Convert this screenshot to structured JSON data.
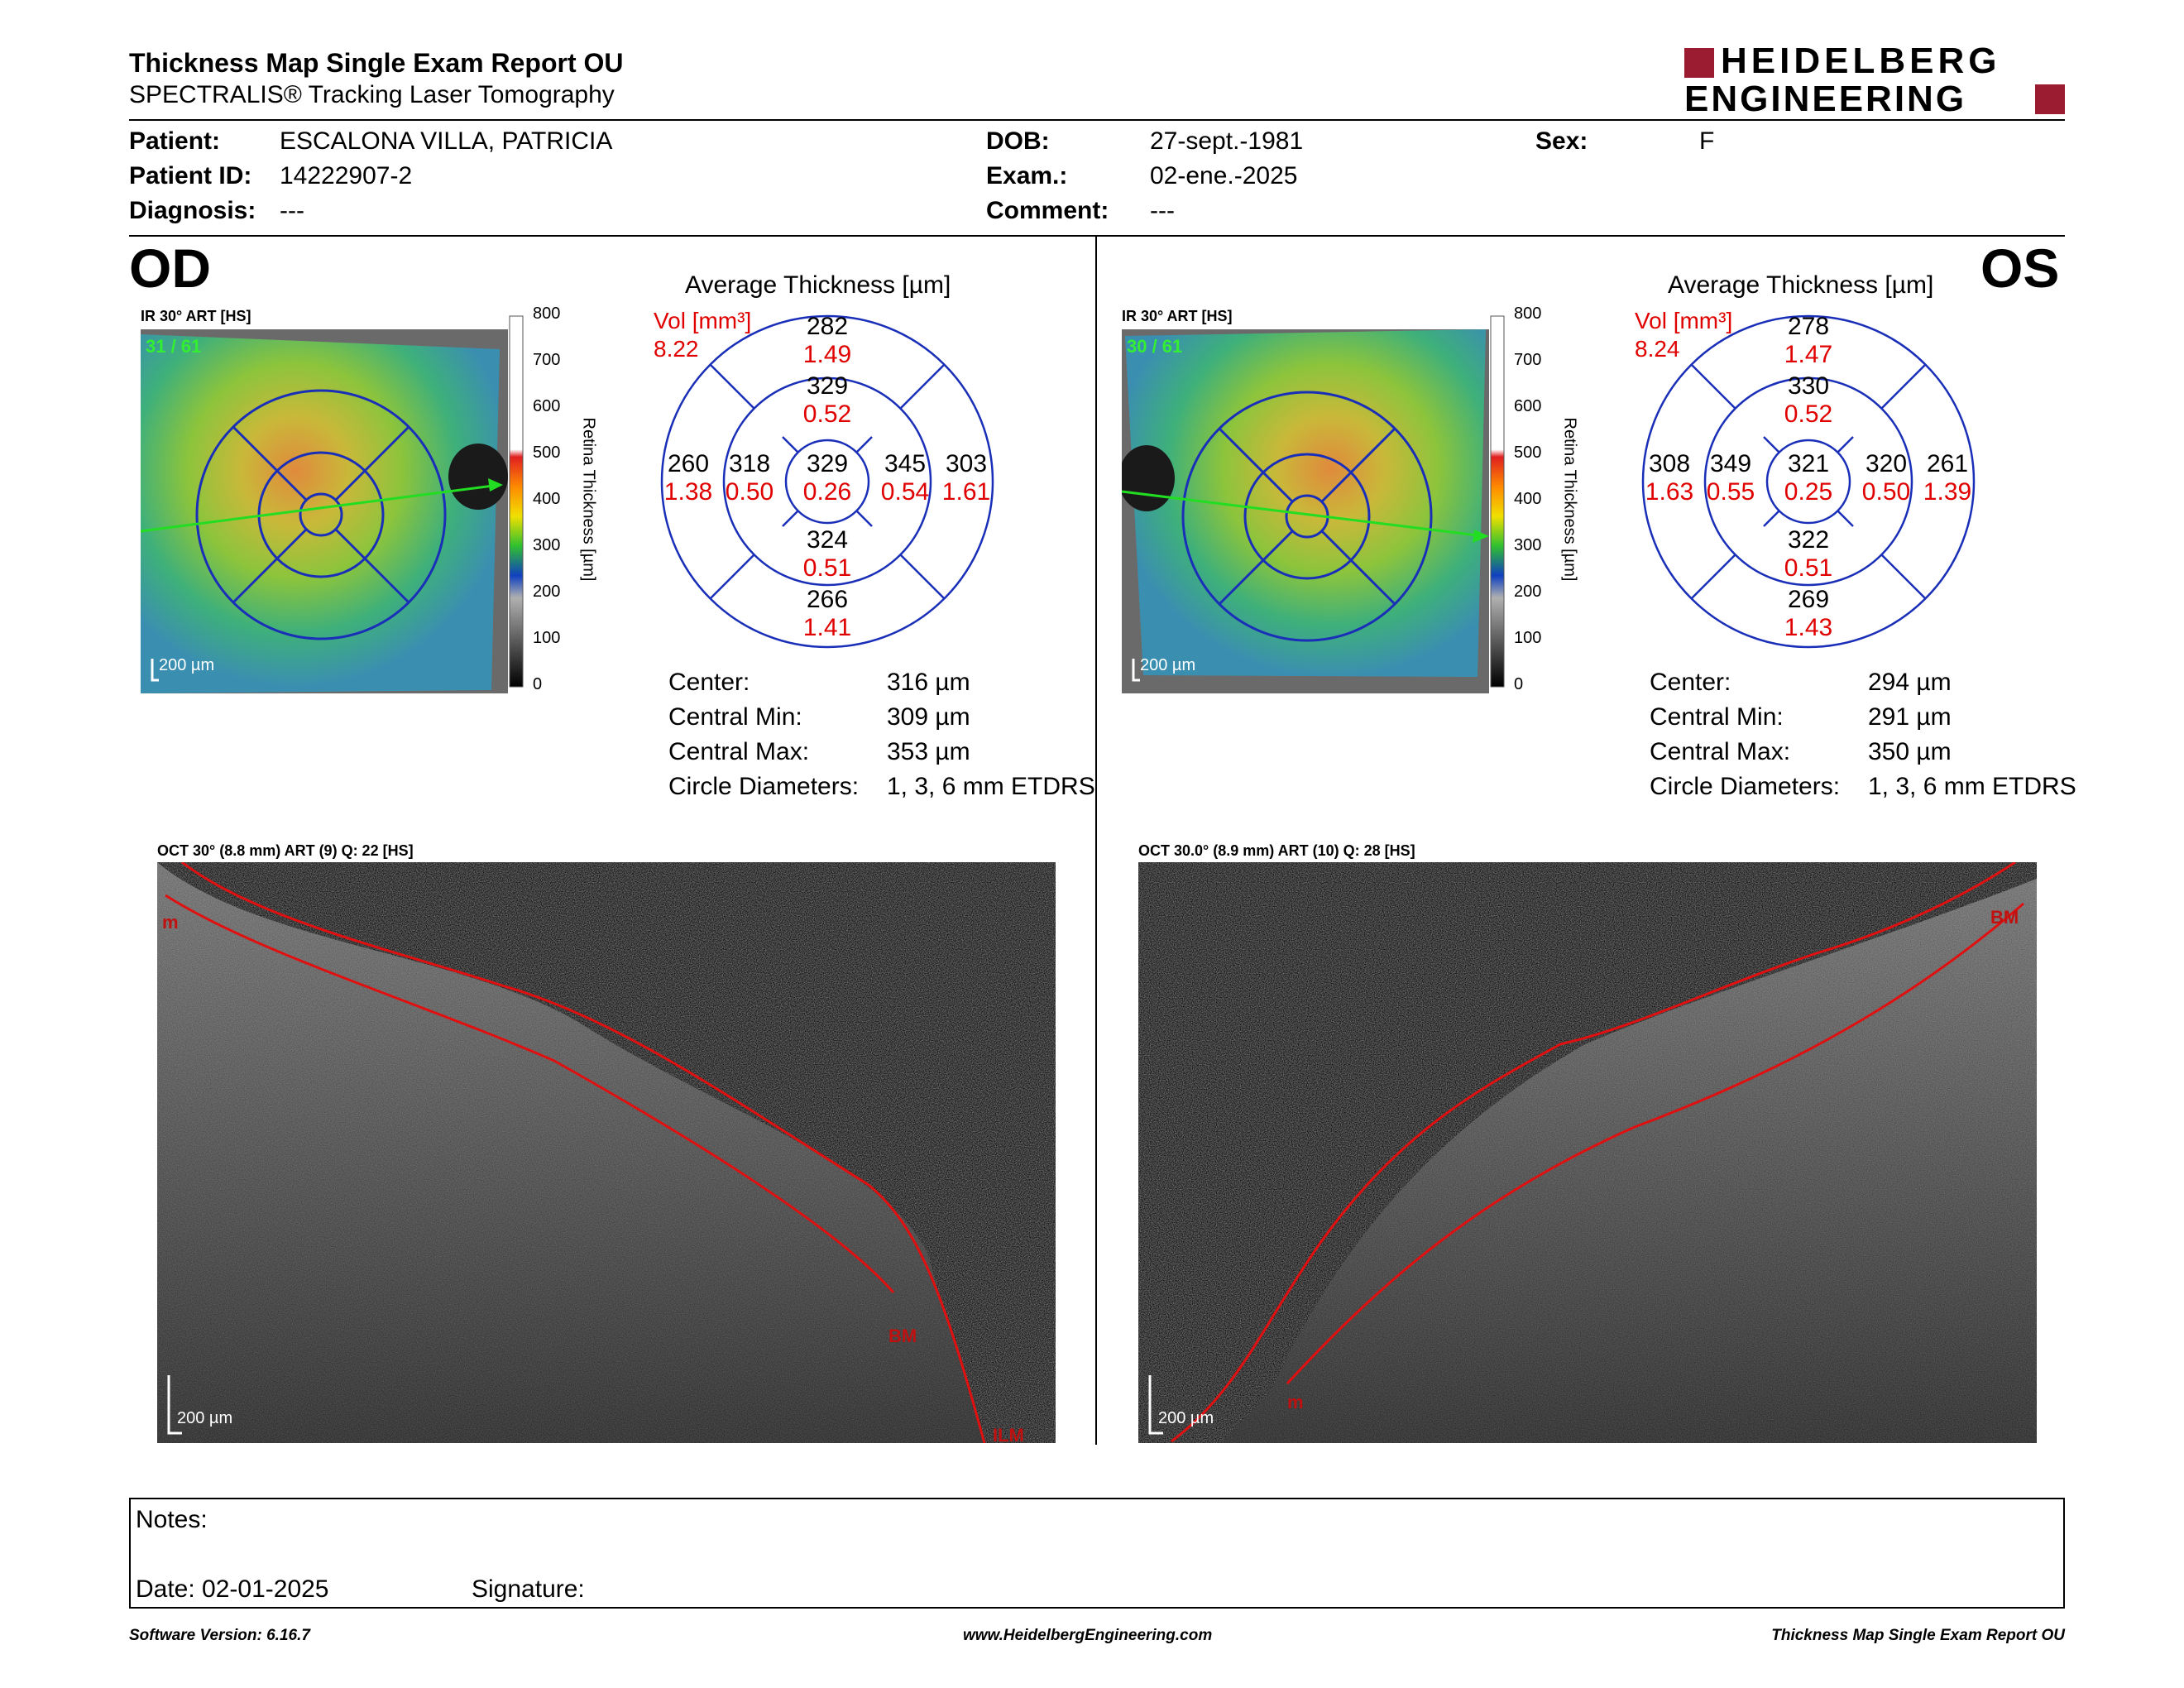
{
  "header": {
    "title": "Thickness Map Single Exam Report OU",
    "subtitle": "SPECTRALIS® Tracking Laser Tomography",
    "logo_line1": "HEIDELBERG",
    "logo_line2": "ENGINEERING",
    "brand_color": "#9b1b30"
  },
  "patient": {
    "patient_label": "Patient:",
    "patient_value": "ESCALONA VILLA, PATRICIA",
    "id_label": "Patient ID:",
    "id_value": "14222907-2",
    "diagnosis_label": "Diagnosis:",
    "diagnosis_value": "---",
    "dob_label": "DOB:",
    "dob_value": "27-sept.-1981",
    "exam_label": "Exam.:",
    "exam_value": "02-ene.-2025",
    "comment_label": "Comment:",
    "comment_value": "---",
    "sex_label": "Sex:",
    "sex_value": "F"
  },
  "od": {
    "eye": "OD",
    "ir_label": "IR 30° ART [HS]",
    "frames": "31 / 61",
    "scale_bar": "200 µm",
    "colorbar_ticks": [
      "800",
      "700",
      "600",
      "500",
      "400",
      "300",
      "200",
      "100",
      "0"
    ],
    "colorbar_label": "Retina Thickness [µm]",
    "avg_title": "Average Thickness [µm]",
    "vol_label": "Vol [mm³]",
    "vol_total": "8.22",
    "sectors": {
      "outer_sup": [
        "282",
        "1.49"
      ],
      "inner_sup": [
        "329",
        "0.52"
      ],
      "outer_temp": [
        "260",
        "1.38"
      ],
      "inner_temp": [
        "318",
        "0.50"
      ],
      "center": [
        "329",
        "0.26"
      ],
      "inner_nas": [
        "345",
        "0.54"
      ],
      "outer_nas": [
        "303",
        "1.61"
      ],
      "inner_inf": [
        "324",
        "0.51"
      ],
      "outer_inf": [
        "266",
        "1.41"
      ]
    },
    "stats": {
      "center_label": "Center:",
      "center_value": "316 µm",
      "min_label": "Central Min:",
      "min_value": "309 µm",
      "max_label": "Central Max:",
      "max_value": "353 µm",
      "diam_label": "Circle Diameters:",
      "diam_value": "1, 3, 6 mm ETDRS"
    },
    "oct_label": "OCT 30° (8.8 mm) ART (9) Q: 22 [HS]",
    "oct_scale": "200 µm",
    "marker_top": "m",
    "marker_bm": "BM",
    "marker_ilm": "ILM"
  },
  "os": {
    "eye": "OS",
    "ir_label": "IR 30° ART [HS]",
    "frames": "30 / 61",
    "scale_bar": "200 µm",
    "colorbar_ticks": [
      "800",
      "700",
      "600",
      "500",
      "400",
      "300",
      "200",
      "100",
      "0"
    ],
    "colorbar_label": "Retina Thickness [µm]",
    "avg_title": "Average Thickness [µm]",
    "vol_label": "Vol [mm³]",
    "vol_total": "8.24",
    "sectors": {
      "outer_sup": [
        "278",
        "1.47"
      ],
      "inner_sup": [
        "330",
        "0.52"
      ],
      "outer_temp": [
        "308",
        "1.63"
      ],
      "inner_temp": [
        "349",
        "0.55"
      ],
      "center": [
        "321",
        "0.25"
      ],
      "inner_nas": [
        "320",
        "0.50"
      ],
      "outer_nas": [
        "261",
        "1.39"
      ],
      "inner_inf": [
        "322",
        "0.51"
      ],
      "outer_inf": [
        "269",
        "1.43"
      ]
    },
    "stats": {
      "center_label": "Center:",
      "center_value": "294 µm",
      "min_label": "Central Min:",
      "min_value": "291 µm",
      "max_label": "Central Max:",
      "max_value": "350 µm",
      "diam_label": "Circle Diameters:",
      "diam_value": "1, 3, 6 mm ETDRS"
    },
    "oct_label": "OCT 30.0° (8.9 mm) ART (10) Q: 28 [HS]",
    "oct_scale": "200 µm",
    "marker_bm": "BM",
    "marker_m": "m"
  },
  "notes": {
    "notes_label": "Notes:",
    "date_label": "Date: 02-01-2025",
    "signature_label": "Signature:"
  },
  "footer": {
    "left": "Software Version: 6.16.7",
    "center": "www.HeidelbergEngineering.com",
    "right": "Thickness Map Single Exam Report OU"
  },
  "colors": {
    "etdrs_grid": "#1a2fb8",
    "volume_text": "#e00000",
    "segmentation_line": "#e01010",
    "scan_line": "#22dd22"
  }
}
